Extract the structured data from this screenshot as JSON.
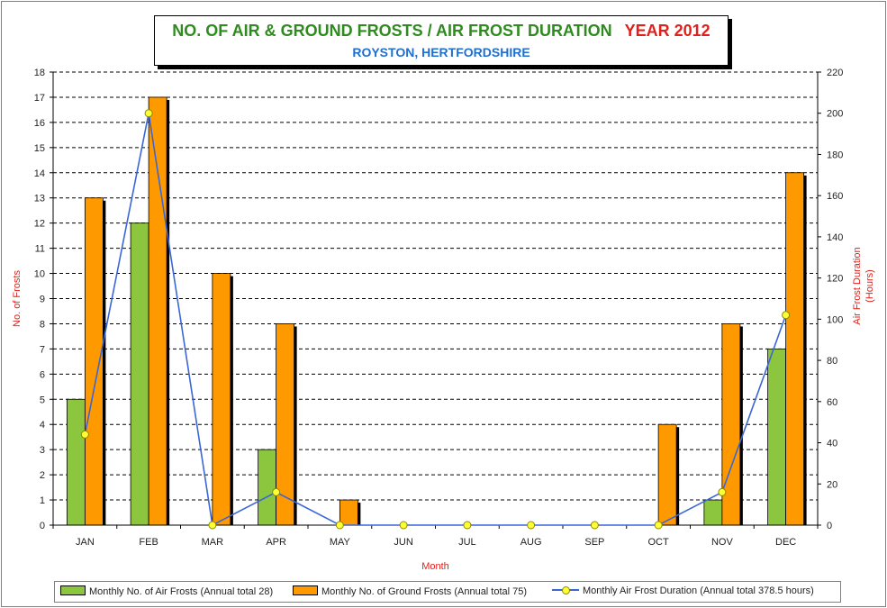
{
  "title": "NO. OF AIR & GROUND FROSTS / AIR FROST DURATION",
  "year": "YEAR 2012",
  "subtitle": "ROYSTON, HERTFORDSHIRE",
  "colors": {
    "air": "#8cc63e",
    "ground": "#ff9900",
    "line": "#3a66d8",
    "marker": "#ffff33",
    "axis_title": "#e0201b"
  },
  "chart_data": {
    "type": "bar",
    "categories": [
      "JAN",
      "FEB",
      "MAR",
      "APR",
      "MAY",
      "JUN",
      "JUL",
      "AUG",
      "SEP",
      "OCT",
      "NOV",
      "DEC"
    ],
    "xlabel": "Month",
    "ylabel": "No. of Frosts",
    "y2label_line1": "Air Frost Duration",
    "y2label_line2": "(Hours)",
    "ylim": [
      0,
      18
    ],
    "y2lim": [
      0,
      220
    ],
    "grid": true,
    "legend_position": "bottom",
    "series": [
      {
        "name": "Monthly No. of Air Frosts (Annual total 28)",
        "type": "bar",
        "axis": "left",
        "values": [
          5,
          12,
          0,
          3,
          0,
          0,
          0,
          0,
          0,
          0,
          1,
          7
        ]
      },
      {
        "name": "Monthly No. of Ground Frosts (Annual total 75)",
        "type": "bar",
        "axis": "left",
        "values": [
          13,
          17,
          10,
          8,
          1,
          0,
          0,
          0,
          0,
          4,
          8,
          14
        ]
      },
      {
        "name": "Monthly Air Frost Duration (Annual total 378.5 hours)",
        "type": "line",
        "axis": "right",
        "values": [
          44,
          200,
          0,
          16,
          0,
          0,
          0,
          0,
          0,
          0,
          16,
          102
        ]
      }
    ]
  }
}
